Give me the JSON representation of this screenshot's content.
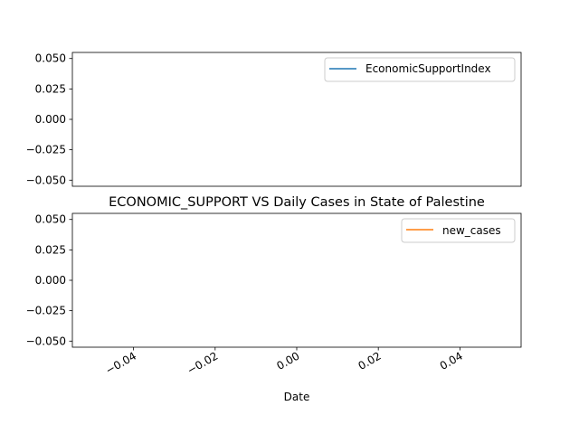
{
  "chart_data": [
    {
      "type": "line",
      "title": "",
      "xlabel": "",
      "ylabel": "",
      "ylim": [
        -0.055,
        0.055
      ],
      "y_ticks": [
        "0.050",
        "0.025",
        "0.000",
        "−0.025",
        "−0.050"
      ],
      "y_tick_values": [
        0.05,
        0.025,
        0.0,
        -0.025,
        -0.05
      ],
      "series": [
        {
          "name": "EconomicSupportIndex",
          "color": "#1f77b4",
          "x": [],
          "y": []
        }
      ],
      "legend": "top-right",
      "grid": false
    },
    {
      "type": "line",
      "title": "ECONOMIC_SUPPORT VS Daily Cases in State of Palestine",
      "xlabel": "Date",
      "ylabel": "",
      "xlim": [
        -0.055,
        0.055
      ],
      "ylim": [
        -0.055,
        0.055
      ],
      "x_ticks": [
        "−0.04",
        "−0.02",
        "0.00",
        "0.02",
        "0.04"
      ],
      "x_tick_values": [
        -0.04,
        -0.02,
        0.0,
        0.02,
        0.04
      ],
      "y_ticks": [
        "0.050",
        "0.025",
        "0.000",
        "−0.025",
        "−0.050"
      ],
      "y_tick_values": [
        0.05,
        0.025,
        0.0,
        -0.025,
        -0.05
      ],
      "series": [
        {
          "name": "new_cases",
          "color": "#ff7f0e",
          "x": [],
          "y": []
        }
      ],
      "legend": "top-right",
      "grid": false
    }
  ]
}
